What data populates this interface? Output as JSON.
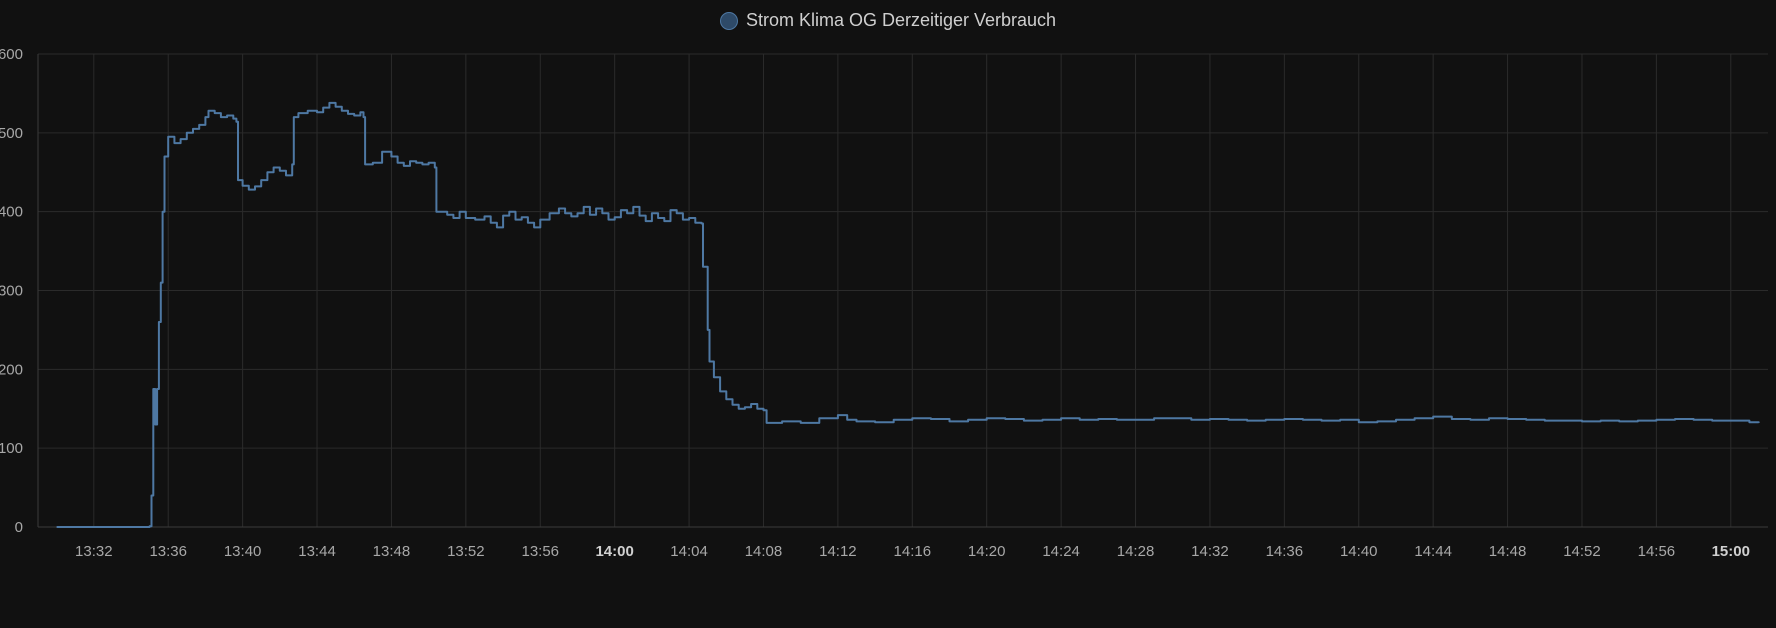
{
  "legend": {
    "label": "Strom Klima OG Derzeitiger Verbrauch",
    "color": "#4e78a3"
  },
  "chart_data": {
    "type": "line",
    "title": "",
    "xlabel": "",
    "ylabel": "",
    "x_unit": "HH:MM",
    "xlim": [
      "13:29",
      "15:02"
    ],
    "ylim": [
      0,
      600
    ],
    "grid": true,
    "legend_position": "top-center",
    "y_ticks": [
      {
        "value": 0,
        "label": "0"
      },
      {
        "value": 100,
        "label": "100"
      },
      {
        "value": 200,
        "label": "200"
      },
      {
        "value": 300,
        "label": "300"
      },
      {
        "value": 400,
        "label": "400"
      },
      {
        "value": 500,
        "label": "500"
      },
      {
        "value": 600,
        "label": "600"
      }
    ],
    "x_ticks": [
      {
        "value": "13:32",
        "label": "13:32",
        "bold": false
      },
      {
        "value": "13:36",
        "label": "13:36",
        "bold": false
      },
      {
        "value": "13:40",
        "label": "13:40",
        "bold": false
      },
      {
        "value": "13:44",
        "label": "13:44",
        "bold": false
      },
      {
        "value": "13:48",
        "label": "13:48",
        "bold": false
      },
      {
        "value": "13:52",
        "label": "13:52",
        "bold": false
      },
      {
        "value": "13:56",
        "label": "13:56",
        "bold": false
      },
      {
        "value": "14:00",
        "label": "14:00",
        "bold": true
      },
      {
        "value": "14:04",
        "label": "14:04",
        "bold": false
      },
      {
        "value": "14:08",
        "label": "14:08",
        "bold": false
      },
      {
        "value": "14:12",
        "label": "14:12",
        "bold": false
      },
      {
        "value": "14:16",
        "label": "14:16",
        "bold": false
      },
      {
        "value": "14:20",
        "label": "14:20",
        "bold": false
      },
      {
        "value": "14:24",
        "label": "14:24",
        "bold": false
      },
      {
        "value": "14:28",
        "label": "14:28",
        "bold": false
      },
      {
        "value": "14:32",
        "label": "14:32",
        "bold": false
      },
      {
        "value": "14:36",
        "label": "14:36",
        "bold": false
      },
      {
        "value": "14:40",
        "label": "14:40",
        "bold": false
      },
      {
        "value": "14:44",
        "label": "14:44",
        "bold": false
      },
      {
        "value": "14:48",
        "label": "14:48",
        "bold": false
      },
      {
        "value": "14:52",
        "label": "14:52",
        "bold": false
      },
      {
        "value": "14:56",
        "label": "14:56",
        "bold": false
      },
      {
        "value": "15:00",
        "label": "15:00",
        "bold": true
      }
    ],
    "series": [
      {
        "name": "Strom Klima OG Derzeitiger Verbrauch",
        "color": "#4e78a3",
        "points": [
          [
            "13:30:00",
            0
          ],
          [
            "13:34:30",
            0
          ],
          [
            "13:35:00",
            1
          ],
          [
            "13:35:06",
            40
          ],
          [
            "13:35:12",
            175
          ],
          [
            "13:35:18",
            130
          ],
          [
            "13:35:24",
            175
          ],
          [
            "13:35:30",
            260
          ],
          [
            "13:35:36",
            310
          ],
          [
            "13:35:42",
            400
          ],
          [
            "13:35:48",
            470
          ],
          [
            "13:36:00",
            495
          ],
          [
            "13:36:20",
            487
          ],
          [
            "13:36:40",
            492
          ],
          [
            "13:37:00",
            500
          ],
          [
            "13:37:20",
            505
          ],
          [
            "13:37:40",
            510
          ],
          [
            "13:38:00",
            520
          ],
          [
            "13:38:10",
            528
          ],
          [
            "13:38:30",
            525
          ],
          [
            "13:38:50",
            520
          ],
          [
            "13:39:10",
            522
          ],
          [
            "13:39:30",
            518
          ],
          [
            "13:39:40",
            514
          ],
          [
            "13:39:45",
            440
          ],
          [
            "13:40:00",
            433
          ],
          [
            "13:40:20",
            428
          ],
          [
            "13:40:40",
            432
          ],
          [
            "13:41:00",
            440
          ],
          [
            "13:41:20",
            450
          ],
          [
            "13:41:40",
            456
          ],
          [
            "13:42:00",
            452
          ],
          [
            "13:42:20",
            446
          ],
          [
            "13:42:40",
            460
          ],
          [
            "13:42:45",
            520
          ],
          [
            "13:43:00",
            525
          ],
          [
            "13:43:30",
            528
          ],
          [
            "13:44:00",
            526
          ],
          [
            "13:44:20",
            532
          ],
          [
            "13:44:40",
            538
          ],
          [
            "13:45:00",
            533
          ],
          [
            "13:45:20",
            528
          ],
          [
            "13:45:40",
            524
          ],
          [
            "13:46:00",
            522
          ],
          [
            "13:46:20",
            526
          ],
          [
            "13:46:30",
            520
          ],
          [
            "13:46:35",
            460
          ],
          [
            "13:47:00",
            462
          ],
          [
            "13:47:30",
            476
          ],
          [
            "13:48:00",
            470
          ],
          [
            "13:48:20",
            462
          ],
          [
            "13:48:40",
            458
          ],
          [
            "13:49:00",
            464
          ],
          [
            "13:49:20",
            462
          ],
          [
            "13:49:40",
            460
          ],
          [
            "13:50:00",
            462
          ],
          [
            "13:50:20",
            456
          ],
          [
            "13:50:25",
            400
          ],
          [
            "13:51:00",
            396
          ],
          [
            "13:51:20",
            392
          ],
          [
            "13:51:40",
            400
          ],
          [
            "13:52:00",
            392
          ],
          [
            "13:52:30",
            390
          ],
          [
            "13:53:00",
            394
          ],
          [
            "13:53:20",
            386
          ],
          [
            "13:53:40",
            380
          ],
          [
            "13:54:00",
            395
          ],
          [
            "13:54:20",
            400
          ],
          [
            "13:54:40",
            390
          ],
          [
            "13:55:00",
            393
          ],
          [
            "13:55:20",
            386
          ],
          [
            "13:55:40",
            380
          ],
          [
            "13:56:00",
            390
          ],
          [
            "13:56:30",
            398
          ],
          [
            "13:57:00",
            404
          ],
          [
            "13:57:20",
            398
          ],
          [
            "13:57:40",
            394
          ],
          [
            "13:58:00",
            398
          ],
          [
            "13:58:20",
            406
          ],
          [
            "13:58:40",
            396
          ],
          [
            "13:59:00",
            404
          ],
          [
            "13:59:20",
            398
          ],
          [
            "13:59:40",
            390
          ],
          [
            "14:00:00",
            393
          ],
          [
            "14:00:20",
            402
          ],
          [
            "14:00:40",
            398
          ],
          [
            "14:01:00",
            406
          ],
          [
            "14:01:20",
            395
          ],
          [
            "14:01:40",
            388
          ],
          [
            "14:02:00",
            398
          ],
          [
            "14:02:20",
            392
          ],
          [
            "14:02:40",
            388
          ],
          [
            "14:03:00",
            402
          ],
          [
            "14:03:20",
            398
          ],
          [
            "14:03:40",
            390
          ],
          [
            "14:04:00",
            392
          ],
          [
            "14:04:20",
            386
          ],
          [
            "14:04:40",
            385
          ],
          [
            "14:04:45",
            330
          ],
          [
            "14:05:00",
            250
          ],
          [
            "14:05:06",
            210
          ],
          [
            "14:05:20",
            190
          ],
          [
            "14:05:40",
            172
          ],
          [
            "14:06:00",
            162
          ],
          [
            "14:06:20",
            155
          ],
          [
            "14:06:40",
            150
          ],
          [
            "14:07:00",
            152
          ],
          [
            "14:07:20",
            156
          ],
          [
            "14:07:40",
            150
          ],
          [
            "14:08:00",
            148
          ],
          [
            "14:08:10",
            132
          ],
          [
            "14:09:00",
            134
          ],
          [
            "14:10:00",
            132
          ],
          [
            "14:11:00",
            138
          ],
          [
            "14:12:00",
            142
          ],
          [
            "14:12:30",
            136
          ],
          [
            "14:13:00",
            134
          ],
          [
            "14:14:00",
            133
          ],
          [
            "14:15:00",
            136
          ],
          [
            "14:16:00",
            138
          ],
          [
            "14:17:00",
            137
          ],
          [
            "14:18:00",
            134
          ],
          [
            "14:19:00",
            136
          ],
          [
            "14:20:00",
            138
          ],
          [
            "14:21:00",
            137
          ],
          [
            "14:22:00",
            135
          ],
          [
            "14:23:00",
            136
          ],
          [
            "14:24:00",
            138
          ],
          [
            "14:25:00",
            136
          ],
          [
            "14:26:00",
            137
          ],
          [
            "14:27:00",
            136
          ],
          [
            "14:28:00",
            136
          ],
          [
            "14:29:00",
            138
          ],
          [
            "14:30:00",
            138
          ],
          [
            "14:31:00",
            136
          ],
          [
            "14:32:00",
            137
          ],
          [
            "14:33:00",
            136
          ],
          [
            "14:34:00",
            135
          ],
          [
            "14:35:00",
            136
          ],
          [
            "14:36:00",
            137
          ],
          [
            "14:37:00",
            136
          ],
          [
            "14:38:00",
            135
          ],
          [
            "14:39:00",
            136
          ],
          [
            "14:40:00",
            133
          ],
          [
            "14:41:00",
            134
          ],
          [
            "14:42:00",
            136
          ],
          [
            "14:43:00",
            138
          ],
          [
            "14:44:00",
            140
          ],
          [
            "14:45:00",
            137
          ],
          [
            "14:46:00",
            136
          ],
          [
            "14:47:00",
            138
          ],
          [
            "14:48:00",
            137
          ],
          [
            "14:49:00",
            136
          ],
          [
            "14:50:00",
            135
          ],
          [
            "14:51:00",
            135
          ],
          [
            "14:52:00",
            134
          ],
          [
            "14:53:00",
            135
          ],
          [
            "14:54:00",
            134
          ],
          [
            "14:55:00",
            135
          ],
          [
            "14:56:00",
            136
          ],
          [
            "14:57:00",
            137
          ],
          [
            "14:58:00",
            136
          ],
          [
            "14:59:00",
            135
          ],
          [
            "15:00:00",
            135
          ],
          [
            "15:01:00",
            133
          ],
          [
            "15:01:30",
            132
          ]
        ]
      }
    ]
  }
}
